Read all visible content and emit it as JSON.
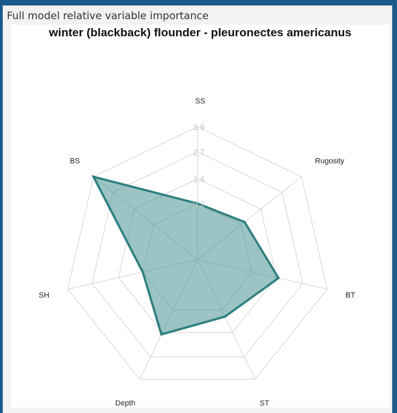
{
  "panel": {
    "title": "Full model relative variable importance"
  },
  "chart_data": {
    "type": "radar",
    "title": "winter (blackback) flounder - pleuronectes americanus",
    "axes": [
      "SS",
      "Rugosity",
      "BT",
      "ST",
      "Depth",
      "SH",
      "BS"
    ],
    "ticks": [
      0.2,
      1.4,
      2.7,
      3.9
    ],
    "range": [
      -2.5,
      3.9
    ],
    "values": [
      0.2,
      0.4,
      1.5,
      0.55,
      1.5,
      0.2,
      3.9
    ],
    "fill_color": "#3a8a8a",
    "line_color": "#2e7f7f",
    "grid_color": "#dcdcdc"
  }
}
